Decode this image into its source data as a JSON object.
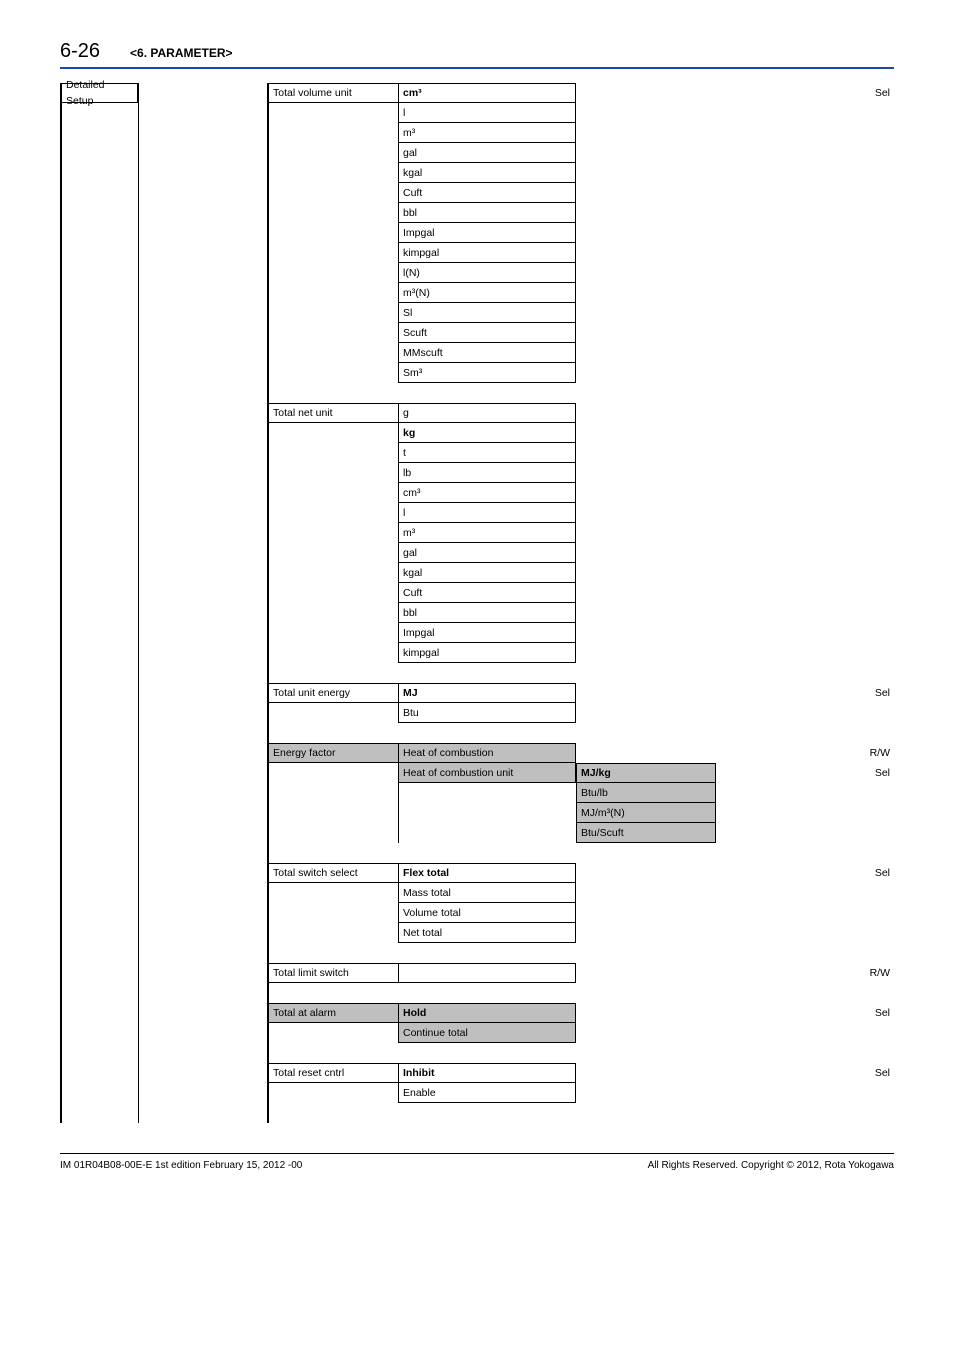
{
  "header": {
    "page_number": "6-26",
    "chapter": "<6. PARAMETER>"
  },
  "col1": {
    "label": "Detailed Setup"
  },
  "groups": [
    {
      "label": "Total volume unit",
      "tag": "Sel",
      "options": [
        "cm³",
        "l",
        "m³",
        "gal",
        "kgal",
        "Cuft",
        "bbl",
        "Impgal",
        "kimpgal",
        "l(N)",
        "m³(N)",
        "Sl",
        "Scuft",
        "MMscuft",
        "Sm³"
      ],
      "bold_idx": 0,
      "sub": null
    },
    {
      "label": "Total net unit",
      "tag": "",
      "options": [
        "g",
        "kg",
        "t",
        "lb",
        "cm³",
        "l",
        "m³",
        "gal",
        "kgal",
        "Cuft",
        "bbl",
        "Impgal",
        "kimpgal"
      ],
      "bold_idx": 1,
      "sub": null
    },
    {
      "label": "Total unit energy",
      "tag": "Sel",
      "options": [
        "MJ",
        "Btu"
      ],
      "bold_idx": 0,
      "sub": null
    },
    {
      "label": "Energy factor",
      "tag": "R/W",
      "shaded": true,
      "options": [
        "Heat of combustion",
        "Heat of combustion unit"
      ],
      "bold_idx": -1,
      "sub": {
        "at": 1,
        "tag": "Sel",
        "options": [
          "MJ/kg",
          "Btu/lb",
          "MJ/m³(N)",
          "Btu/Scuft"
        ],
        "bold_idx": 0,
        "shaded": true
      }
    },
    {
      "label": "Total switch select",
      "tag": "Sel",
      "options": [
        "Flex total",
        "Mass total",
        "Volume total",
        "Net total"
      ],
      "bold_idx": 0,
      "sub": null
    },
    {
      "label": "Total limit switch",
      "tag": "R/W",
      "options": [
        ""
      ],
      "bold_idx": -1,
      "sub": null
    },
    {
      "label": "Total at alarm",
      "tag": "Sel",
      "shaded": true,
      "options": [
        "Hold",
        "Continue total"
      ],
      "bold_idx": 0,
      "sub": null
    },
    {
      "label": "Total reset cntrl",
      "tag": "Sel",
      "options": [
        "Inhibit",
        "Enable"
      ],
      "bold_idx": 0,
      "sub": null
    }
  ],
  "footer": {
    "left": "IM 01R04B08-00E-E    1st edition February 15, 2012 -00",
    "right": "All Rights Reserved. Copyright © 2012, Rota Yokogawa"
  }
}
